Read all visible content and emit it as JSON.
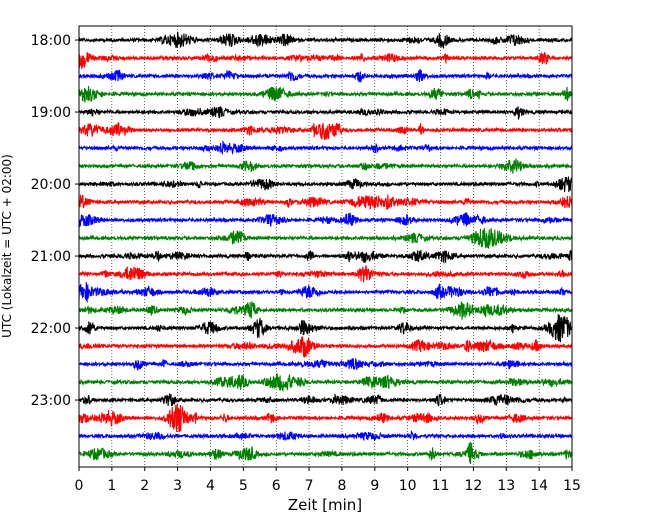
{
  "chart_data": {
    "type": "line",
    "title": "",
    "xlabel": "Zeit  [min]",
    "ylabel": "UTC (Lokalzeit = UTC + 02:00)",
    "xlim": [
      0,
      15
    ],
    "x_ticks": [
      "0",
      "1",
      "2",
      "3",
      "4",
      "5",
      "6",
      "7",
      "8",
      "9",
      "10",
      "11",
      "12",
      "13",
      "14",
      "15"
    ],
    "y_tick_labels": [
      "18:00",
      "19:00",
      "20:00",
      "21:00",
      "22:00",
      "23:00"
    ],
    "grid": "vertical dotted at each minute",
    "trace_colors": [
      "#000000",
      "#ff0000",
      "#0000ff",
      "#008000"
    ],
    "trace_count": 24,
    "trace_interval_min": 15,
    "traces": [
      {
        "start": "18:00",
        "color": "#000000"
      },
      {
        "start": "18:15",
        "color": "#ff0000"
      },
      {
        "start": "18:30",
        "color": "#0000ff"
      },
      {
        "start": "18:45",
        "color": "#008000"
      },
      {
        "start": "19:00",
        "color": "#000000"
      },
      {
        "start": "19:15",
        "color": "#ff0000"
      },
      {
        "start": "19:30",
        "color": "#0000ff"
      },
      {
        "start": "19:45",
        "color": "#008000"
      },
      {
        "start": "20:00",
        "color": "#000000"
      },
      {
        "start": "20:15",
        "color": "#ff0000"
      },
      {
        "start": "20:30",
        "color": "#0000ff"
      },
      {
        "start": "20:45",
        "color": "#008000"
      },
      {
        "start": "21:00",
        "color": "#000000"
      },
      {
        "start": "21:15",
        "color": "#ff0000"
      },
      {
        "start": "21:30",
        "color": "#0000ff"
      },
      {
        "start": "21:45",
        "color": "#008000"
      },
      {
        "start": "22:00",
        "color": "#000000"
      },
      {
        "start": "22:15",
        "color": "#ff0000"
      },
      {
        "start": "22:30",
        "color": "#0000ff"
      },
      {
        "start": "22:45",
        "color": "#008000"
      },
      {
        "start": "23:00",
        "color": "#000000"
      },
      {
        "start": "23:15",
        "color": "#ff0000"
      },
      {
        "start": "23:30",
        "color": "#0000ff"
      },
      {
        "start": "23:45",
        "color": "#008000"
      }
    ]
  }
}
